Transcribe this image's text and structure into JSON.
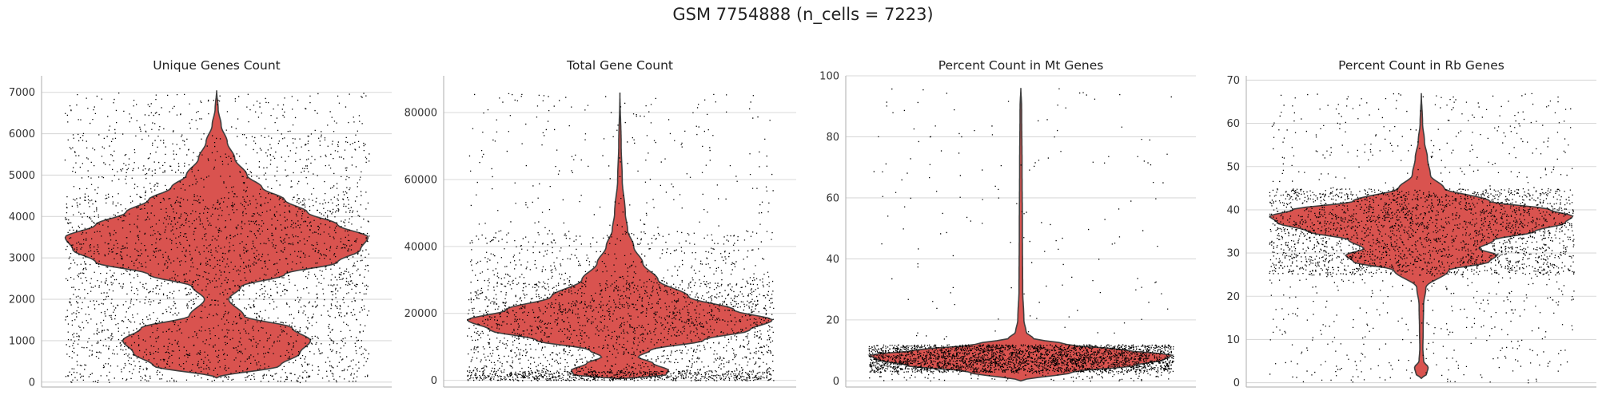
{
  "title": "GSM 7754888 (n_cells = 7223)",
  "chart_data": [
    {
      "type": "violin",
      "title": "Unique Genes Count",
      "ylim": [
        -120,
        7400
      ],
      "yticks": [
        0,
        1000,
        2000,
        3000,
        4000,
        5000,
        6000,
        7000
      ],
      "ytick_labels": [
        "0",
        "1000",
        "2000",
        "3000",
        "4000",
        "5000",
        "6000",
        "7000"
      ],
      "grid": true,
      "color": "#d9534f",
      "density": [
        [
          100,
          0.0
        ],
        [
          400,
          0.42
        ],
        [
          700,
          0.55
        ],
        [
          1000,
          0.62
        ],
        [
          1300,
          0.5
        ],
        [
          1600,
          0.18
        ],
        [
          2000,
          0.08
        ],
        [
          2300,
          0.16
        ],
        [
          2600,
          0.45
        ],
        [
          2900,
          0.8
        ],
        [
          3200,
          0.95
        ],
        [
          3500,
          1.0
        ],
        [
          3800,
          0.8
        ],
        [
          4100,
          0.6
        ],
        [
          4400,
          0.45
        ],
        [
          4700,
          0.3
        ],
        [
          5000,
          0.2
        ],
        [
          5400,
          0.12
        ],
        [
          5800,
          0.07
        ],
        [
          6200,
          0.03
        ],
        [
          6600,
          0.01
        ],
        [
          7050,
          0.0
        ]
      ],
      "dots": [
        [
          0,
          1200,
          0.2
        ],
        [
          1200,
          2700,
          0.25
        ],
        [
          2700,
          4500,
          0.35
        ],
        [
          4500,
          6000,
          0.15
        ],
        [
          6000,
          7000,
          0.05
        ]
      ]
    },
    {
      "type": "violin",
      "title": "Total Gene Count",
      "ylim": [
        -2000,
        91000
      ],
      "yticks": [
        0,
        20000,
        40000,
        60000,
        80000
      ],
      "ytick_labels": [
        "0",
        "20000",
        "40000",
        "60000",
        "80000"
      ],
      "grid": true,
      "color": "#d9534f",
      "density": [
        [
          500,
          0.0
        ],
        [
          1500,
          0.3
        ],
        [
          3000,
          0.32
        ],
        [
          5000,
          0.22
        ],
        [
          7000,
          0.12
        ],
        [
          9000,
          0.2
        ],
        [
          12000,
          0.55
        ],
        [
          15000,
          0.85
        ],
        [
          18000,
          1.0
        ],
        [
          21000,
          0.75
        ],
        [
          25000,
          0.45
        ],
        [
          30000,
          0.25
        ],
        [
          35000,
          0.15
        ],
        [
          40000,
          0.09
        ],
        [
          45000,
          0.05
        ],
        [
          50000,
          0.035
        ],
        [
          60000,
          0.015
        ],
        [
          70000,
          0.008
        ],
        [
          86000,
          0.0
        ]
      ],
      "dots": [
        [
          0,
          3000,
          0.25
        ],
        [
          3000,
          12000,
          0.15
        ],
        [
          12000,
          30000,
          0.4
        ],
        [
          30000,
          45000,
          0.13
        ],
        [
          45000,
          86000,
          0.07
        ]
      ]
    },
    {
      "type": "violin",
      "title": "Percent Count in Mt Genes",
      "ylim": [
        -2,
        100
      ],
      "yticks": [
        0,
        20,
        40,
        60,
        80,
        100
      ],
      "ytick_labels": [
        "0",
        "20",
        "40",
        "60",
        "80",
        "100"
      ],
      "grid": true,
      "color": "#d9534f",
      "density": [
        [
          0,
          0.0
        ],
        [
          3,
          0.35
        ],
        [
          5,
          0.75
        ],
        [
          7,
          0.95
        ],
        [
          8.5,
          1.0
        ],
        [
          10,
          0.7
        ],
        [
          12,
          0.3
        ],
        [
          14,
          0.08
        ],
        [
          16,
          0.035
        ],
        [
          20,
          0.02
        ],
        [
          30,
          0.012
        ],
        [
          50,
          0.01
        ],
        [
          70,
          0.008
        ],
        [
          90,
          0.005
        ],
        [
          96,
          0.0
        ]
      ],
      "dots": [
        [
          3,
          12,
          0.92
        ],
        [
          0,
          3,
          0.03
        ],
        [
          12,
          96,
          0.05
        ]
      ]
    },
    {
      "type": "violin",
      "title": "Percent Count in Rb Genes",
      "ylim": [
        -1,
        71
      ],
      "yticks": [
        0,
        10,
        20,
        30,
        40,
        50,
        60,
        70
      ],
      "ytick_labels": [
        "0",
        "10",
        "20",
        "30",
        "40",
        "50",
        "60",
        "70"
      ],
      "grid": true,
      "color": "#d9534f",
      "density": [
        [
          1,
          0.0
        ],
        [
          2,
          0.035
        ],
        [
          3.5,
          0.045
        ],
        [
          5,
          0.015
        ],
        [
          8,
          0.01
        ],
        [
          12,
          0.012
        ],
        [
          18,
          0.015
        ],
        [
          22,
          0.03
        ],
        [
          26,
          0.18
        ],
        [
          28,
          0.45
        ],
        [
          29.5,
          0.5
        ],
        [
          31,
          0.38
        ],
        [
          33,
          0.48
        ],
        [
          35,
          0.75
        ],
        [
          37,
          0.95
        ],
        [
          38.5,
          1.0
        ],
        [
          40,
          0.85
        ],
        [
          42,
          0.45
        ],
        [
          45,
          0.15
        ],
        [
          48,
          0.06
        ],
        [
          52,
          0.04
        ],
        [
          56,
          0.02
        ],
        [
          60,
          0.008
        ],
        [
          67,
          0.0
        ]
      ],
      "dots": [
        [
          25,
          45,
          0.82
        ],
        [
          0,
          25,
          0.1
        ],
        [
          45,
          67,
          0.08
        ]
      ]
    }
  ]
}
